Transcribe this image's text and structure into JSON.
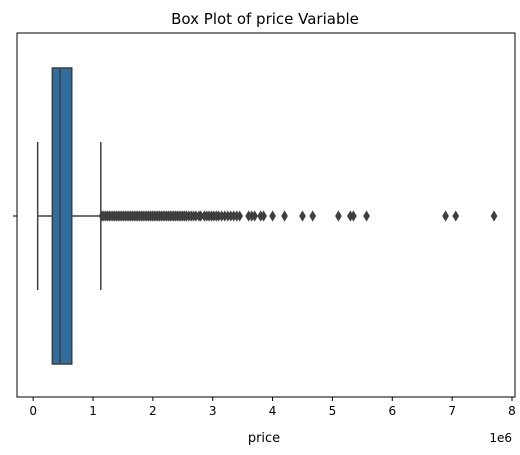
{
  "chart_data": {
    "type": "box",
    "title": "Box Plot of price Variable",
    "xlabel": "price",
    "ylabel": "",
    "x_offset_label": "1e6",
    "xlim": [
      -0.27,
      8.05
    ],
    "xticks": [
      0,
      1,
      2,
      3,
      4,
      5,
      6,
      7,
      8
    ],
    "xtick_labels": [
      "0",
      "1",
      "2",
      "3",
      "4",
      "5",
      "6",
      "7",
      "8"
    ],
    "orientation": "horizontal",
    "color": "#2e6d9e",
    "edge_color": "#3f3f3f",
    "grid": false,
    "box": {
      "whisker_low": 0.075,
      "q1": 0.32,
      "median": 0.45,
      "q3": 0.645,
      "whisker_high": 1.13
    },
    "outliers": [
      1.15,
      1.18,
      1.21,
      1.24,
      1.27,
      1.3,
      1.33,
      1.36,
      1.39,
      1.42,
      1.45,
      1.48,
      1.51,
      1.54,
      1.57,
      1.6,
      1.63,
      1.66,
      1.69,
      1.72,
      1.75,
      1.78,
      1.81,
      1.84,
      1.87,
      1.9,
      1.93,
      1.96,
      1.99,
      2.02,
      2.05,
      2.08,
      2.11,
      2.14,
      2.17,
      2.2,
      2.23,
      2.26,
      2.29,
      2.32,
      2.35,
      2.38,
      2.41,
      2.44,
      2.47,
      2.5,
      2.53,
      2.56,
      2.6,
      2.64,
      2.68,
      2.72,
      2.77,
      2.8,
      2.86,
      2.9,
      2.94,
      2.98,
      3.02,
      3.06,
      3.1,
      3.15,
      3.2,
      3.25,
      3.3,
      3.35,
      3.4,
      3.45,
      3.6,
      3.65,
      3.7,
      3.8,
      3.85,
      4.0,
      4.2,
      4.5,
      4.67,
      5.1,
      5.3,
      5.35,
      5.57,
      6.89,
      7.06,
      7.7
    ]
  }
}
